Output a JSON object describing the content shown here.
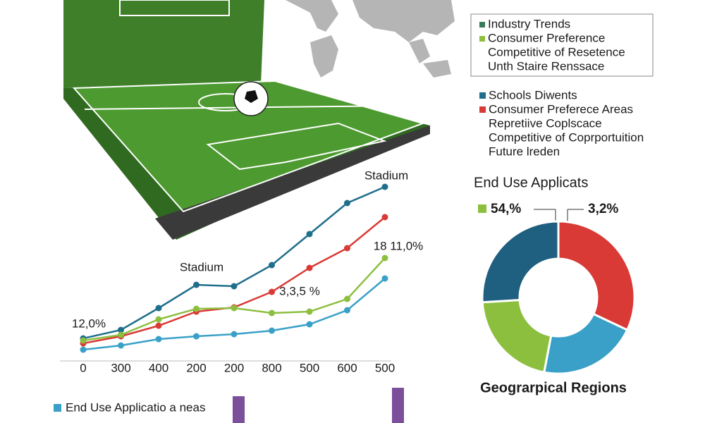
{
  "chart_data": [
    {
      "type": "line",
      "categories": [
        "0",
        "300",
        "400",
        "200",
        "200",
        "800",
        "500",
        "600",
        "500"
      ],
      "ylim": [
        0,
        100
      ],
      "series": [
        {
          "color": "#1f6e8c",
          "values": [
            8,
            12.8,
            25.2,
            38.4,
            37.6,
            49.6,
            67.2,
            84.8,
            94
          ]
        },
        {
          "color": "#d93a35",
          "values": [
            5.2,
            9.2,
            15.2,
            23.2,
            25.6,
            34.4,
            48,
            59.2,
            76.8
          ]
        },
        {
          "color": "#8dbf3f",
          "values": [
            6.8,
            10,
            18.8,
            24.8,
            25.2,
            22.4,
            23.2,
            30.4,
            53.6
          ]
        },
        {
          "color": "#3aa0c8",
          "values": [
            1.6,
            4,
            7.6,
            9.2,
            10.4,
            12.4,
            16,
            24,
            42
          ]
        }
      ],
      "annotations": [
        "Stadium",
        "Stadium",
        "18 11,0%",
        "3,3,5 %",
        "12,0%"
      ]
    },
    {
      "type": "donut",
      "title": "End Use Applicats",
      "caption": "Geograrpical Regions",
      "values": [
        32,
        21,
        21,
        26
      ],
      "colors": [
        "#d93a35",
        "#3aa0c8",
        "#8dbf3f",
        "#1f5f7f"
      ],
      "annotations": [
        "54,%",
        "3,2%"
      ]
    }
  ],
  "legend_top": [
    "Industry Trends",
    "Consumer Preference",
    "Competitive of Resetence",
    "Unth Staire Renssace"
  ],
  "legend_middle": [
    "Schools Diwents",
    "Consumer Preferece Areas",
    "Repretiive Coplscace",
    "Competitive of Coprportuition",
    "Future lreden"
  ],
  "legend_bottom": "End Use Applicatio a neas"
}
